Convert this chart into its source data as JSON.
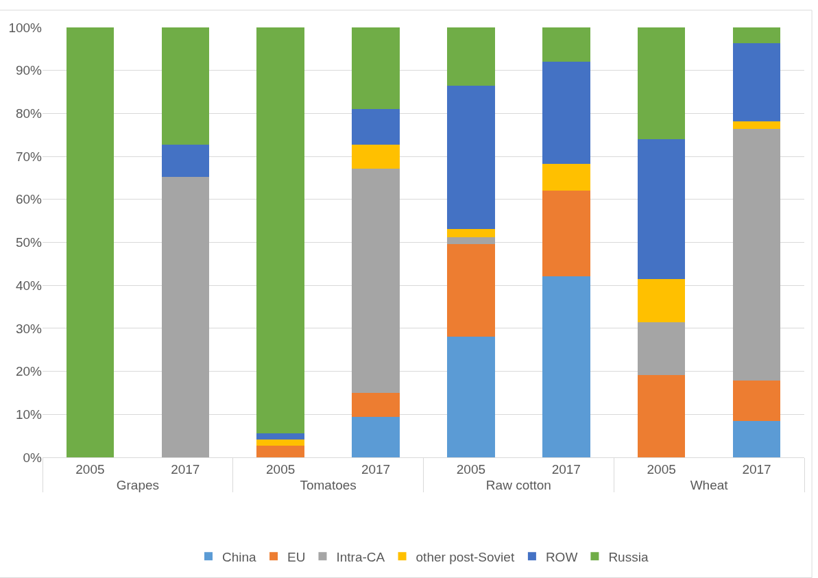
{
  "chart_data": {
    "type": "bar",
    "stacked": true,
    "categories": [
      "2005",
      "2017",
      "2005",
      "2017",
      "2005",
      "2017",
      "2005",
      "2017"
    ],
    "annotations": [
      "Grapes",
      "Tomatoes",
      "Raw cotton",
      "Wheat"
    ],
    "series": [
      {
        "name": "China",
        "color": "#5b9bd5",
        "values": [
          0,
          0,
          0,
          9.4,
          28.0,
          42.1,
          0,
          8.5
        ]
      },
      {
        "name": "EU",
        "color": "#ed7d31",
        "values": [
          0,
          0,
          2.7,
          5.6,
          21.6,
          19.9,
          19.2,
          9.3
        ]
      },
      {
        "name": "Intra-CA",
        "color": "#a5a5a5",
        "values": [
          0,
          65.3,
          0,
          52.1,
          1.6,
          0,
          12.3,
          58.6
        ]
      },
      {
        "name": "other post-Soviet",
        "color": "#ffc000",
        "values": [
          0,
          0,
          1.5,
          5.7,
          1.9,
          6.3,
          10.0,
          1.8
        ]
      },
      {
        "name": "ROW",
        "color": "#4472c4",
        "values": [
          0,
          7.5,
          1.4,
          8.2,
          33.3,
          23.8,
          32.5,
          18.2
        ]
      },
      {
        "name": "Russia",
        "color": "#70ad47",
        "values": [
          100,
          27.2,
          94.4,
          19.0,
          13.6,
          7.9,
          26.0,
          3.6
        ]
      }
    ],
    "ylim": [
      0,
      100
    ],
    "yticks": [
      {
        "value": 0,
        "label": "0%"
      },
      {
        "value": 10,
        "label": "10%"
      },
      {
        "value": 20,
        "label": "20%"
      },
      {
        "value": 30,
        "label": "30%"
      },
      {
        "value": 40,
        "label": "40%"
      },
      {
        "value": 50,
        "label": "50%"
      },
      {
        "value": 60,
        "label": "60%"
      },
      {
        "value": 70,
        "label": "70%"
      },
      {
        "value": 80,
        "label": "80%"
      },
      {
        "value": 90,
        "label": "90%"
      },
      {
        "value": 100,
        "label": "100%"
      }
    ],
    "grid": "y",
    "legend": "bottom"
  }
}
